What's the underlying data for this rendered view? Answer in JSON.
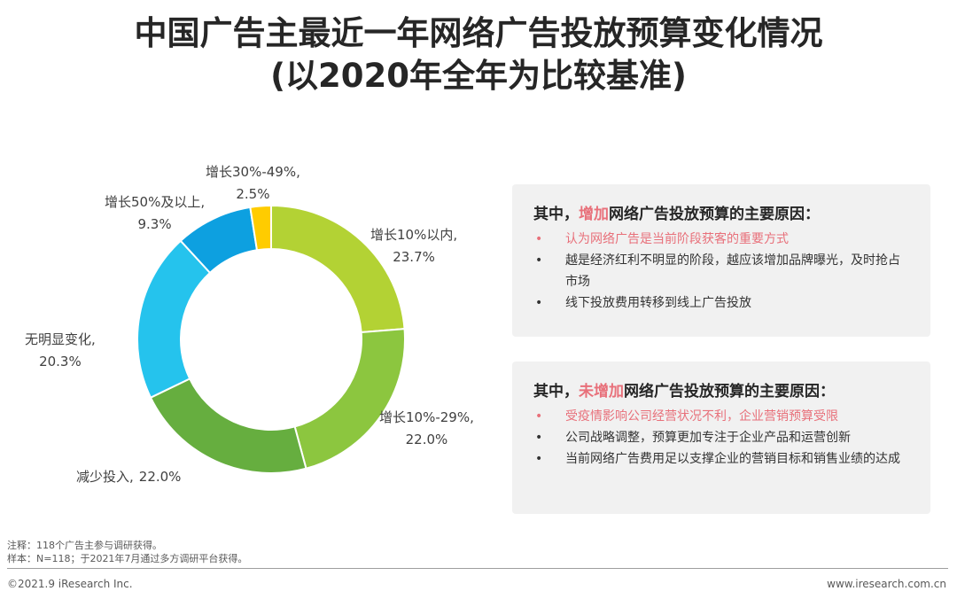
{
  "title": {
    "line1": "中国广告主最近一年网络广告投放预算变化情况",
    "line2": "(以2020年全年为比较基准)"
  },
  "chart_data": {
    "type": "pie",
    "variant": "donut",
    "categories": [
      "增长10%以内",
      "增长10%-29%",
      "减少投入",
      "无明显变化",
      "增长50%及以上",
      "增长30%-49%"
    ],
    "values": [
      23.7,
      22.0,
      22.0,
      20.3,
      9.3,
      2.5
    ],
    "unit": "%",
    "colors": [
      "#b3d234",
      "#8cc63f",
      "#66ae3f",
      "#25c3ed",
      "#0da0e0",
      "#ffcc00"
    ],
    "labels": [
      {
        "name": "增长10%以内,",
        "value": "23.7%"
      },
      {
        "name": "增长10%-29%,",
        "value": "22.0%"
      },
      {
        "name": "减少投入,",
        "value": "22.0%"
      },
      {
        "name": "无明显变化,",
        "value": "20.3%"
      },
      {
        "name": "增长50%及以上,",
        "value": "9.3%"
      },
      {
        "name": "增长30%-49%,",
        "value": "2.5%"
      }
    ]
  },
  "boxes": [
    {
      "head_pre": "其中，",
      "head_hl": "增加",
      "head_post": "网络广告投放预算的主要原因：",
      "bullet": "•",
      "items": [
        {
          "text": "认为网络广告是当前阶段获客的重要方式",
          "highlight": true
        },
        {
          "text": "越是经济红利不明显的阶段，越应该增加品牌曝光，及时抢占市场",
          "highlight": false
        },
        {
          "text": "线下投放费用转移到线上广告投放",
          "highlight": false
        }
      ]
    },
    {
      "head_pre": "其中，",
      "head_hl": "未增加",
      "head_post": "网络广告投放预算的主要原因：",
      "bullet": "•",
      "items": [
        {
          "text": "受疫情影响公司经营状况不利，企业营销预算受限",
          "highlight": true
        },
        {
          "text": "公司战略调整，预算更加专注于企业产品和运营创新",
          "highlight": false
        },
        {
          "text": "当前网络广告费用足以支撑企业的营销目标和销售业绩的达成",
          "highlight": false
        }
      ]
    }
  ],
  "notes": {
    "note": "注释：118个广告主参与调研获得。",
    "sample": "样本：N=118；于2021年7月通过多方调研平台获得。"
  },
  "footer": {
    "copyright": "©2021.9 iResearch Inc.",
    "website": "www.iresearch.com.cn"
  }
}
